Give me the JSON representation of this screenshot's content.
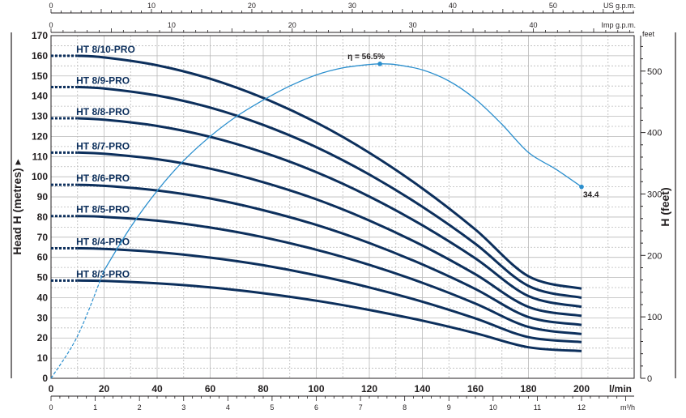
{
  "chart_data": {
    "type": "line",
    "title": "",
    "x": {
      "label": "l/min",
      "range": [
        0,
        200
      ],
      "ticks": [
        0,
        20,
        40,
        60,
        80,
        100,
        120,
        140,
        160,
        180,
        200
      ]
    },
    "x_secondary_bottom": {
      "label": "m³/h",
      "range": [
        0,
        12
      ],
      "ticks": [
        0,
        1,
        2,
        3,
        4,
        5,
        6,
        7,
        8,
        9,
        10,
        11,
        12
      ]
    },
    "x_top_us": {
      "label": "US g.p.m.",
      "range": [
        0,
        52.8
      ],
      "ticks": [
        0,
        10,
        20,
        30,
        40,
        50
      ]
    },
    "x_top_imp": {
      "label": "Imp g.p.m.",
      "range": [
        0,
        44
      ],
      "ticks": [
        0,
        10,
        20,
        30,
        40
      ]
    },
    "y": {
      "label": "Head H (metres)",
      "range": [
        0,
        170
      ],
      "ticks": [
        0,
        10,
        20,
        30,
        40,
        50,
        60,
        70,
        80,
        90,
        100,
        110,
        120,
        130,
        140,
        150,
        160,
        170
      ]
    },
    "y_right": {
      "label": "H (feet)",
      "unit": "feet",
      "range": [
        0,
        557.7
      ],
      "ticks": [
        0,
        100,
        200,
        300,
        400,
        500
      ]
    },
    "grid": true,
    "series": [
      {
        "name": "HT 8/10-PRO",
        "x": [
          0,
          10,
          20,
          40,
          60,
          80,
          100,
          120,
          140,
          160,
          180,
          200
        ],
        "values": [
          160,
          160,
          159.2,
          155.3,
          148.6,
          139.1,
          126.9,
          111.9,
          94.2,
          73.8,
          50.6,
          44.5
        ]
      },
      {
        "name": "HT 8/9-PRO",
        "x": [
          0,
          10,
          20,
          40,
          60,
          80,
          100,
          120,
          140,
          160,
          180,
          200
        ],
        "values": [
          144.5,
          144.5,
          143.8,
          140.3,
          134.3,
          125.7,
          114.7,
          101.1,
          85.1,
          66.7,
          45.8,
          40
        ]
      },
      {
        "name": "HT 8/8-PRO",
        "x": [
          0,
          10,
          20,
          40,
          60,
          80,
          100,
          120,
          140,
          160,
          180,
          200
        ],
        "values": [
          129,
          129,
          128.3,
          125.2,
          119.8,
          112.1,
          102.3,
          90.2,
          75.9,
          59.5,
          40.8,
          35.5
        ]
      },
      {
        "name": "HT 8/7-PRO",
        "x": [
          0,
          10,
          20,
          40,
          60,
          80,
          100,
          120,
          140,
          160,
          180,
          200
        ],
        "values": [
          112,
          112,
          111.4,
          108.7,
          104,
          97.3,
          88.8,
          78.3,
          65.9,
          51.6,
          35.4,
          31
        ]
      },
      {
        "name": "HT 8/6-PRO",
        "x": [
          0,
          10,
          20,
          40,
          60,
          80,
          100,
          120,
          140,
          160,
          180,
          200
        ],
        "values": [
          96,
          96,
          95.5,
          93.2,
          89.2,
          83.4,
          76.1,
          67.1,
          56.5,
          44.3,
          30.4,
          26.5
        ]
      },
      {
        "name": "HT 8/5-PRO",
        "x": [
          0,
          10,
          20,
          40,
          60,
          80,
          100,
          120,
          140,
          160,
          180,
          200
        ],
        "values": [
          80.5,
          80.5,
          80.1,
          78.2,
          74.8,
          70,
          63.8,
          56.3,
          47.4,
          37.1,
          25.5,
          22
        ]
      },
      {
        "name": "HT 8/4-PRO",
        "x": [
          0,
          10,
          20,
          40,
          60,
          80,
          100,
          120,
          140,
          160,
          180,
          200
        ],
        "values": [
          64.5,
          64.5,
          64.2,
          62.6,
          59.9,
          56.1,
          51.1,
          45.1,
          38,
          29.7,
          20.4,
          18
        ]
      },
      {
        "name": "HT 8/3-PRO",
        "x": [
          0,
          10,
          20,
          40,
          60,
          80,
          100,
          120,
          140,
          160,
          180,
          200
        ],
        "values": [
          48.5,
          48.5,
          48.3,
          47.1,
          45.1,
          42.2,
          38.5,
          33.9,
          28.6,
          22.4,
          15.4,
          13.5
        ]
      }
    ],
    "efficiency": {
      "x": [
        0,
        10,
        20,
        30,
        40,
        50,
        60,
        70,
        80,
        90,
        100,
        110,
        120,
        124,
        130,
        140,
        150,
        160,
        170,
        180,
        190,
        200
      ],
      "values": [
        0,
        21,
        53.5,
        75,
        93,
        108,
        120,
        130,
        138,
        145,
        150.5,
        154,
        155.7,
        156,
        155.6,
        153,
        147.5,
        138.5,
        126,
        112,
        104,
        95
      ],
      "peak_label": "η = 56.5%",
      "end_label": "34.4"
    }
  }
}
